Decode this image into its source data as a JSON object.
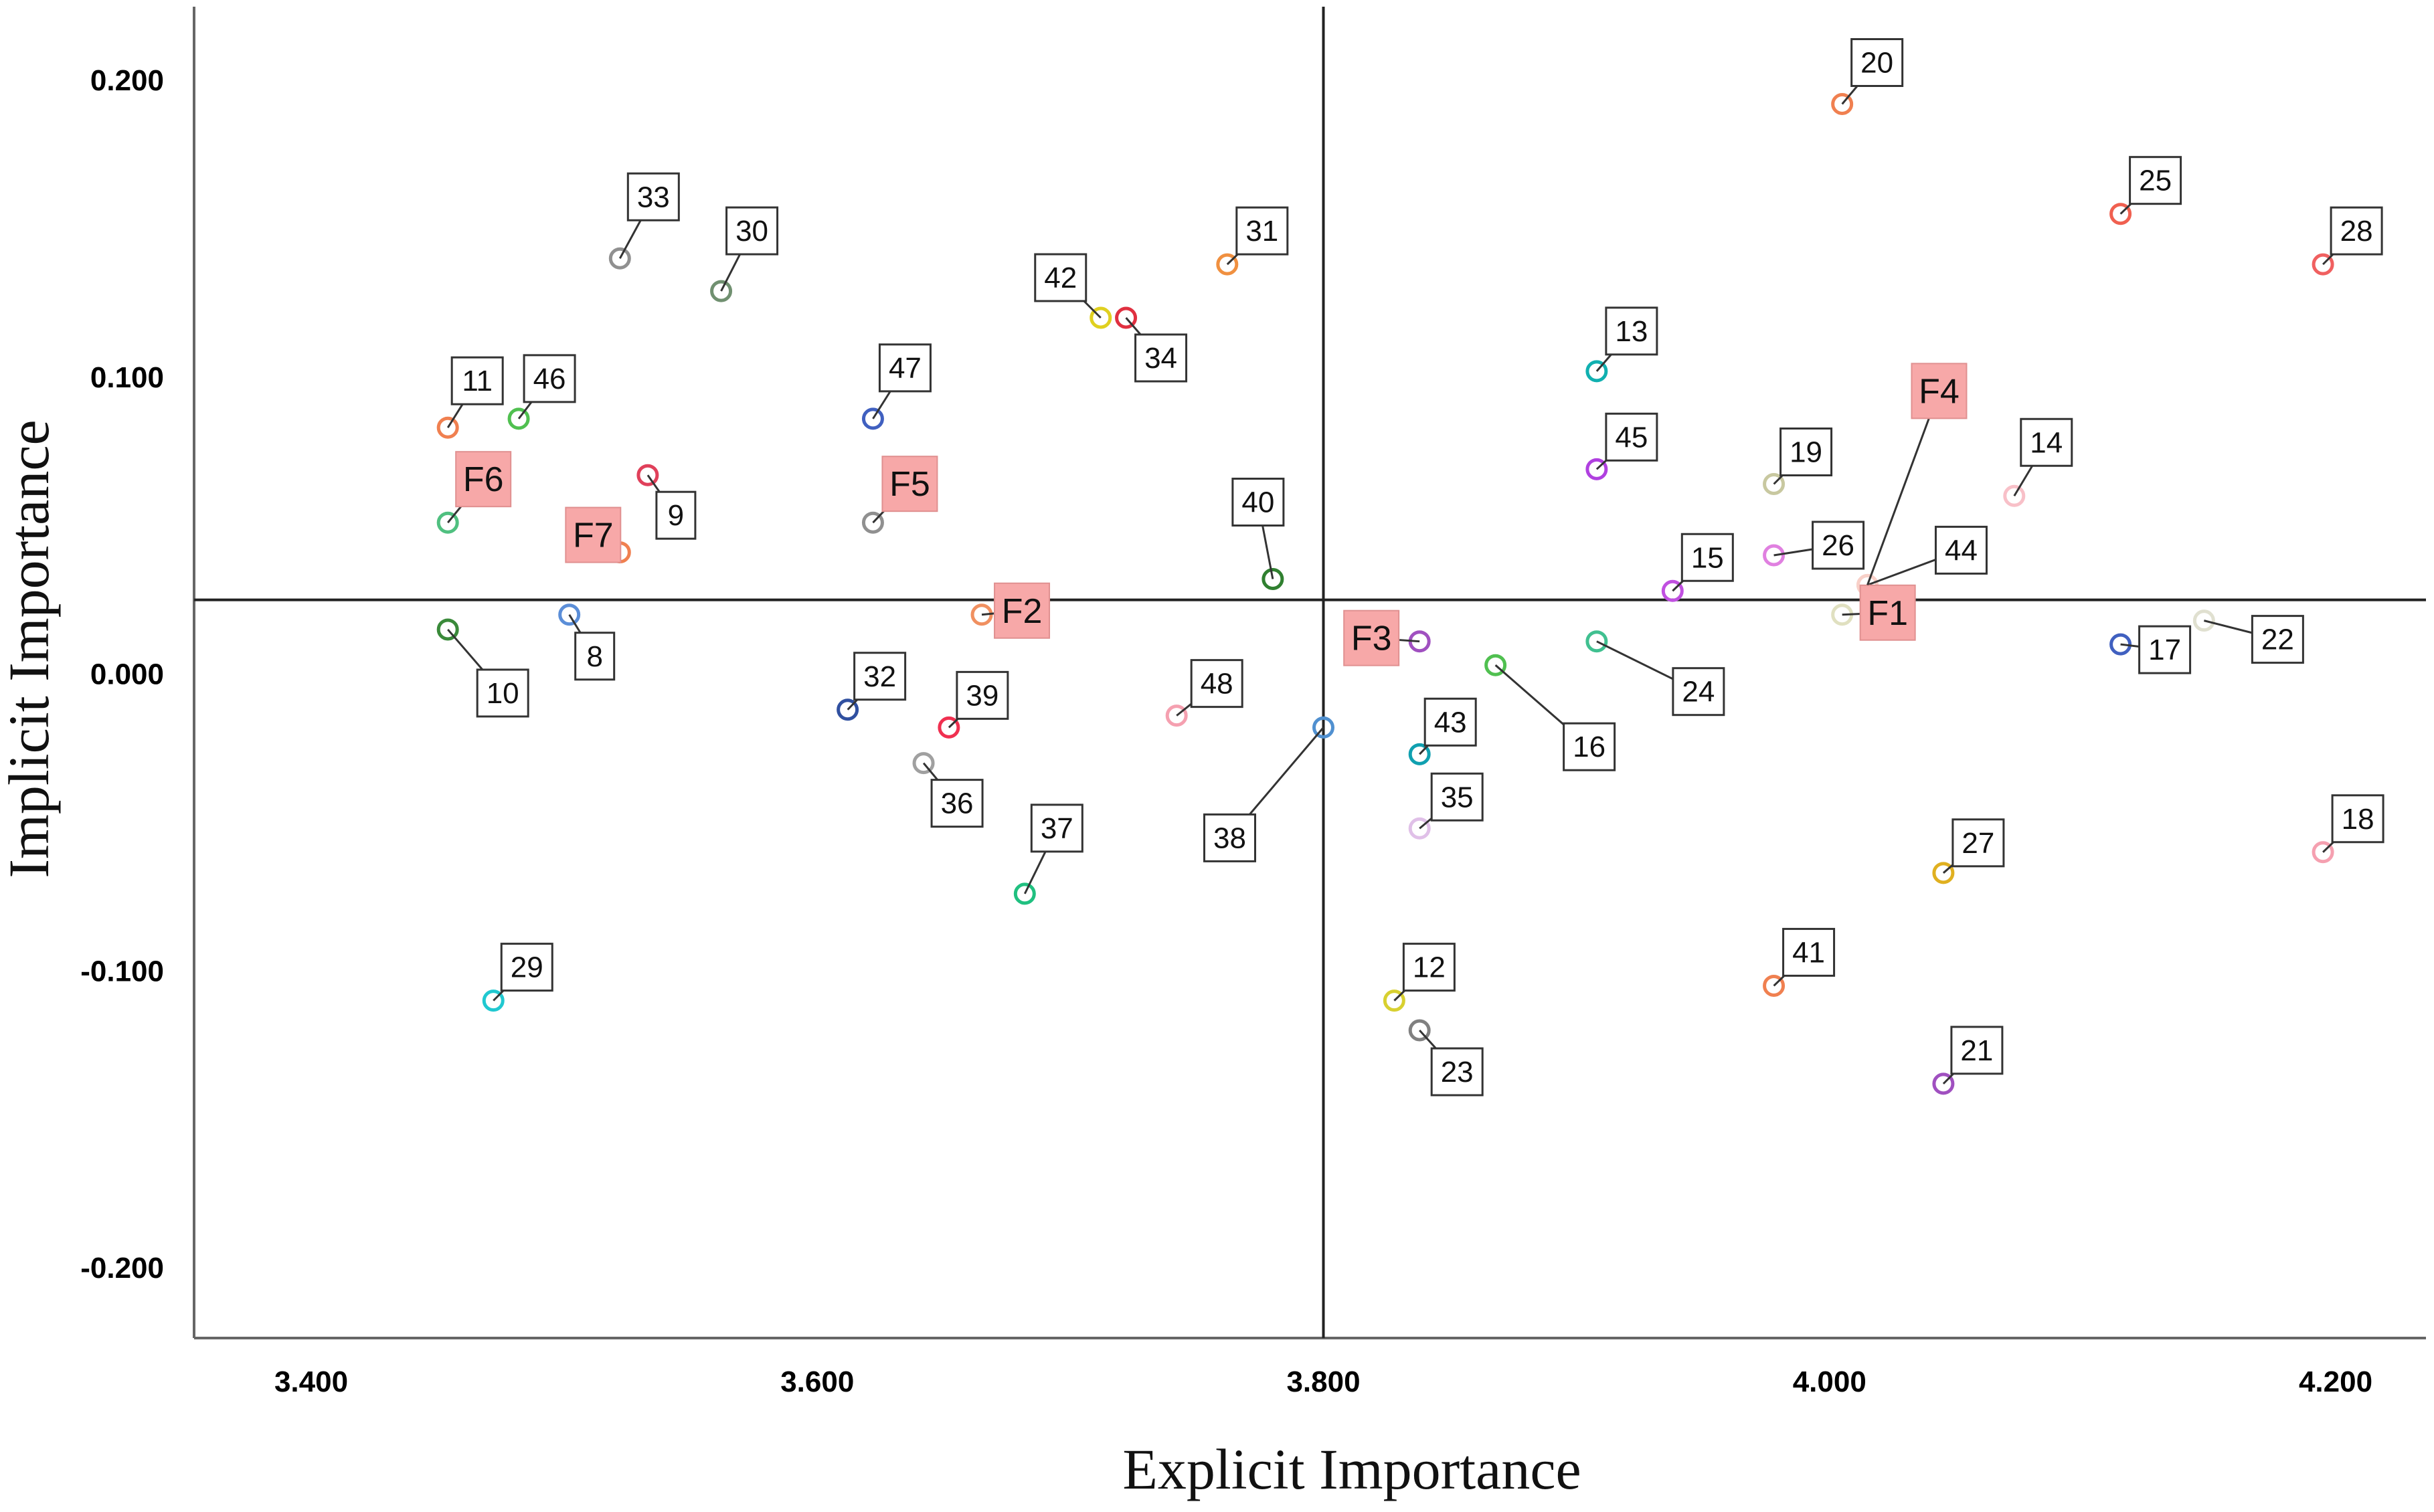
{
  "chart_data": {
    "type": "scatter",
    "title": "",
    "xlabel": "Explicit Importance",
    "ylabel": "Implicit Importance",
    "xlim": [
      3.36,
      4.23
    ],
    "ylim": [
      -0.225,
      0.225
    ],
    "x_ticks": [
      "3.400",
      "3.600",
      "3.800",
      "4.000",
      "4.200"
    ],
    "y_ticks": [
      "0.200",
      "0.100",
      "0.000",
      "-0.100",
      "-0.200"
    ],
    "x_tick_values": [
      3.4,
      3.6,
      3.8,
      4.0,
      4.2
    ],
    "y_tick_values": [
      0.2,
      0.1,
      0.0,
      -0.1,
      -0.2
    ],
    "mean_lines": {
      "x": 3.8,
      "y": 0.025
    },
    "grid": false,
    "points": [
      {
        "label": "8",
        "x": 3.502,
        "y": 0.02,
        "color": "#5b8ed8"
      },
      {
        "label": "9",
        "x": 3.533,
        "y": 0.067,
        "color": "#e0405a"
      },
      {
        "label": "10",
        "x": 3.454,
        "y": 0.015,
        "color": "#3a8a3a"
      },
      {
        "label": "11",
        "x": 3.454,
        "y": 0.083,
        "color": "#f08050"
      },
      {
        "label": "12",
        "x": 3.828,
        "y": -0.11,
        "color": "#d8d030"
      },
      {
        "label": "13",
        "x": 3.908,
        "y": 0.102,
        "color": "#10b0b0"
      },
      {
        "label": "14",
        "x": 4.073,
        "y": 0.06,
        "color": "#f8c0c8"
      },
      {
        "label": "15",
        "x": 3.938,
        "y": 0.028,
        "color": "#c050e0"
      },
      {
        "label": "16",
        "x": 3.868,
        "y": 0.003,
        "color": "#50c050"
      },
      {
        "label": "17",
        "x": 4.115,
        "y": 0.01,
        "color": "#4060c0"
      },
      {
        "label": "18",
        "x": 4.195,
        "y": -0.06,
        "color": "#f5a0b0"
      },
      {
        "label": "19",
        "x": 3.978,
        "y": 0.064,
        "color": "#c8c8a0"
      },
      {
        "label": "20",
        "x": 4.005,
        "y": 0.192,
        "color": "#f08050"
      },
      {
        "label": "21",
        "x": 4.045,
        "y": -0.138,
        "color": "#a050c0"
      },
      {
        "label": "22",
        "x": 4.148,
        "y": 0.018,
        "color": "#e0e0d0"
      },
      {
        "label": "23",
        "x": 3.838,
        "y": -0.12,
        "color": "#808080"
      },
      {
        "label": "24",
        "x": 3.908,
        "y": 0.011,
        "color": "#40c090"
      },
      {
        "label": "25",
        "x": 4.115,
        "y": 0.155,
        "color": "#f06050"
      },
      {
        "label": "26",
        "x": 3.978,
        "y": 0.04,
        "color": "#e080e0"
      },
      {
        "label": "27",
        "x": 4.045,
        "y": -0.067,
        "color": "#e0b020"
      },
      {
        "label": "28",
        "x": 4.195,
        "y": 0.138,
        "color": "#f06060"
      },
      {
        "label": "29",
        "x": 3.472,
        "y": -0.11,
        "color": "#20c8d0"
      },
      {
        "label": "30",
        "x": 3.562,
        "y": 0.129,
        "color": "#709070"
      },
      {
        "label": "31",
        "x": 3.762,
        "y": 0.138,
        "color": "#f09040"
      },
      {
        "label": "32",
        "x": 3.612,
        "y": -0.012,
        "color": "#3050a0"
      },
      {
        "label": "33",
        "x": 3.522,
        "y": 0.14,
        "color": "#909090"
      },
      {
        "label": "34",
        "x": 3.722,
        "y": 0.12,
        "color": "#e03040"
      },
      {
        "label": "35",
        "x": 3.838,
        "y": -0.052,
        "color": "#e0c0e8"
      },
      {
        "label": "36",
        "x": 3.642,
        "y": -0.03,
        "color": "#a0a0a0"
      },
      {
        "label": "37",
        "x": 3.682,
        "y": -0.074,
        "color": "#20c080"
      },
      {
        "label": "38",
        "x": 3.8,
        "y": -0.018,
        "color": "#5090d0"
      },
      {
        "label": "39",
        "x": 3.652,
        "y": -0.018,
        "color": "#f03050"
      },
      {
        "label": "40",
        "x": 3.78,
        "y": 0.032,
        "color": "#308030"
      },
      {
        "label": "41",
        "x": 3.978,
        "y": -0.105,
        "color": "#f08050"
      },
      {
        "label": "42",
        "x": 3.712,
        "y": 0.12,
        "color": "#e0d020"
      },
      {
        "label": "43",
        "x": 3.838,
        "y": -0.027,
        "color": "#10a0b0"
      },
      {
        "label": "44",
        "x": 4.015,
        "y": 0.03,
        "color": "#f8d0c8"
      },
      {
        "label": "45",
        "x": 3.908,
        "y": 0.069,
        "color": "#b040e0"
      },
      {
        "label": "46",
        "x": 3.482,
        "y": 0.086,
        "color": "#50c050"
      },
      {
        "label": "47",
        "x": 3.622,
        "y": 0.086,
        "color": "#4060c0"
      },
      {
        "label": "48",
        "x": 3.742,
        "y": -0.014,
        "color": "#f5a0b0"
      }
    ],
    "factors": [
      {
        "label": "F1",
        "x": 4.005,
        "y": 0.02,
        "color": "#e0e0c0"
      },
      {
        "label": "F2",
        "x": 3.665,
        "y": 0.02,
        "color": "#f09060"
      },
      {
        "label": "F3",
        "x": 3.838,
        "y": 0.011,
        "color": "#a050c0"
      },
      {
        "label": "F4",
        "x": 4.015,
        "y": 0.03,
        "color": "#f8d0c8"
      },
      {
        "label": "F5",
        "x": 3.622,
        "y": 0.051,
        "color": "#909090"
      },
      {
        "label": "F6",
        "x": 3.454,
        "y": 0.051,
        "color": "#50c080"
      },
      {
        "label": "F7",
        "x": 3.522,
        "y": 0.041,
        "color": "#f08050"
      }
    ],
    "factor_box_color": "#f7a8a8"
  }
}
